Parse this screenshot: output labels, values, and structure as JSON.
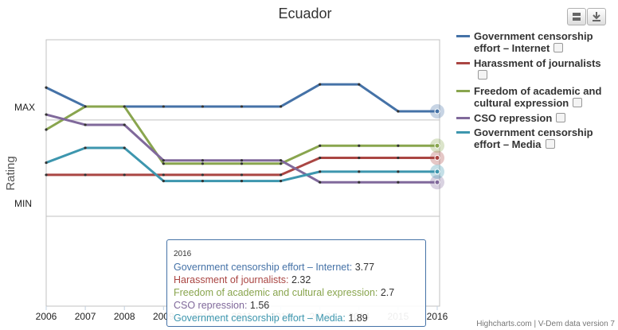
{
  "chart_data": {
    "type": "line",
    "title": "Ecuador",
    "y_axis_label": "Rating",
    "x": [
      2006,
      2007,
      2008,
      2009,
      2010,
      2011,
      2012,
      2013,
      2014,
      2015,
      2016
    ],
    "xlim": [
      2006,
      2016
    ],
    "xticks": [
      2006,
      2007,
      2008,
      2009,
      2010,
      2011,
      2012,
      2013,
      2014,
      2015,
      2016
    ],
    "ylim": [
      -2.3,
      6
    ],
    "yticks": [
      {
        "value": 3.5,
        "label": "MAX"
      },
      {
        "value": 0.5,
        "label": "MIN"
      }
    ],
    "grid": true,
    "series": [
      {
        "name": "Government censorship effort – Internet",
        "color": "#4572a7",
        "values": [
          4.51,
          3.92,
          3.92,
          3.92,
          3.92,
          3.92,
          3.92,
          4.61,
          4.61,
          3.77,
          3.77
        ]
      },
      {
        "name": "Harassment of journalists",
        "color": "#aa4643",
        "values": [
          1.79,
          1.79,
          1.79,
          1.79,
          1.79,
          1.79,
          1.79,
          2.32,
          2.32,
          2.32,
          2.32
        ]
      },
      {
        "name": "Freedom of academic and cultural expression",
        "color": "#89a54e",
        "values": [
          3.2,
          3.92,
          3.92,
          2.14,
          2.14,
          2.14,
          2.14,
          2.7,
          2.7,
          2.7,
          2.7
        ]
      },
      {
        "name": "CSO repression",
        "color": "#80699b",
        "values": [
          3.67,
          3.35,
          3.35,
          2.24,
          2.24,
          2.24,
          2.24,
          1.56,
          1.56,
          1.56,
          1.56
        ]
      },
      {
        "name": "Government censorship effort – Media",
        "color": "#3d96ae",
        "values": [
          2.17,
          2.63,
          2.63,
          1.6,
          1.6,
          1.6,
          1.6,
          1.89,
          1.89,
          1.89,
          1.89
        ]
      }
    ],
    "tooltip": {
      "title": "2016"
    },
    "credits": "Highcharts.com | V-Dem data version 7"
  }
}
